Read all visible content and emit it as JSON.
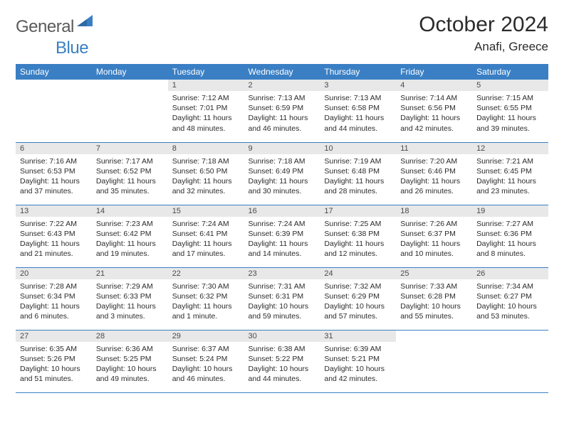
{
  "brand": {
    "part1": "General",
    "part2": "Blue"
  },
  "title": "October 2024",
  "location": "Anafi, Greece",
  "colors": {
    "header_bg": "#3a7fc4",
    "header_text": "#ffffff",
    "daynum_bg": "#e8e8e8",
    "row_border": "#3a7fc4",
    "body_text": "#2b2b2b",
    "logo_gray": "#5a5a5a",
    "logo_blue": "#3a7fc4"
  },
  "weekdays": [
    "Sunday",
    "Monday",
    "Tuesday",
    "Wednesday",
    "Thursday",
    "Friday",
    "Saturday"
  ],
  "weeks": [
    [
      {
        "n": "",
        "sr": "",
        "ss": "",
        "dl": ""
      },
      {
        "n": "",
        "sr": "",
        "ss": "",
        "dl": ""
      },
      {
        "n": "1",
        "sr": "Sunrise: 7:12 AM",
        "ss": "Sunset: 7:01 PM",
        "dl": "Daylight: 11 hours and 48 minutes."
      },
      {
        "n": "2",
        "sr": "Sunrise: 7:13 AM",
        "ss": "Sunset: 6:59 PM",
        "dl": "Daylight: 11 hours and 46 minutes."
      },
      {
        "n": "3",
        "sr": "Sunrise: 7:13 AM",
        "ss": "Sunset: 6:58 PM",
        "dl": "Daylight: 11 hours and 44 minutes."
      },
      {
        "n": "4",
        "sr": "Sunrise: 7:14 AM",
        "ss": "Sunset: 6:56 PM",
        "dl": "Daylight: 11 hours and 42 minutes."
      },
      {
        "n": "5",
        "sr": "Sunrise: 7:15 AM",
        "ss": "Sunset: 6:55 PM",
        "dl": "Daylight: 11 hours and 39 minutes."
      }
    ],
    [
      {
        "n": "6",
        "sr": "Sunrise: 7:16 AM",
        "ss": "Sunset: 6:53 PM",
        "dl": "Daylight: 11 hours and 37 minutes."
      },
      {
        "n": "7",
        "sr": "Sunrise: 7:17 AM",
        "ss": "Sunset: 6:52 PM",
        "dl": "Daylight: 11 hours and 35 minutes."
      },
      {
        "n": "8",
        "sr": "Sunrise: 7:18 AM",
        "ss": "Sunset: 6:50 PM",
        "dl": "Daylight: 11 hours and 32 minutes."
      },
      {
        "n": "9",
        "sr": "Sunrise: 7:18 AM",
        "ss": "Sunset: 6:49 PM",
        "dl": "Daylight: 11 hours and 30 minutes."
      },
      {
        "n": "10",
        "sr": "Sunrise: 7:19 AM",
        "ss": "Sunset: 6:48 PM",
        "dl": "Daylight: 11 hours and 28 minutes."
      },
      {
        "n": "11",
        "sr": "Sunrise: 7:20 AM",
        "ss": "Sunset: 6:46 PM",
        "dl": "Daylight: 11 hours and 26 minutes."
      },
      {
        "n": "12",
        "sr": "Sunrise: 7:21 AM",
        "ss": "Sunset: 6:45 PM",
        "dl": "Daylight: 11 hours and 23 minutes."
      }
    ],
    [
      {
        "n": "13",
        "sr": "Sunrise: 7:22 AM",
        "ss": "Sunset: 6:43 PM",
        "dl": "Daylight: 11 hours and 21 minutes."
      },
      {
        "n": "14",
        "sr": "Sunrise: 7:23 AM",
        "ss": "Sunset: 6:42 PM",
        "dl": "Daylight: 11 hours and 19 minutes."
      },
      {
        "n": "15",
        "sr": "Sunrise: 7:24 AM",
        "ss": "Sunset: 6:41 PM",
        "dl": "Daylight: 11 hours and 17 minutes."
      },
      {
        "n": "16",
        "sr": "Sunrise: 7:24 AM",
        "ss": "Sunset: 6:39 PM",
        "dl": "Daylight: 11 hours and 14 minutes."
      },
      {
        "n": "17",
        "sr": "Sunrise: 7:25 AM",
        "ss": "Sunset: 6:38 PM",
        "dl": "Daylight: 11 hours and 12 minutes."
      },
      {
        "n": "18",
        "sr": "Sunrise: 7:26 AM",
        "ss": "Sunset: 6:37 PM",
        "dl": "Daylight: 11 hours and 10 minutes."
      },
      {
        "n": "19",
        "sr": "Sunrise: 7:27 AM",
        "ss": "Sunset: 6:36 PM",
        "dl": "Daylight: 11 hours and 8 minutes."
      }
    ],
    [
      {
        "n": "20",
        "sr": "Sunrise: 7:28 AM",
        "ss": "Sunset: 6:34 PM",
        "dl": "Daylight: 11 hours and 6 minutes."
      },
      {
        "n": "21",
        "sr": "Sunrise: 7:29 AM",
        "ss": "Sunset: 6:33 PM",
        "dl": "Daylight: 11 hours and 3 minutes."
      },
      {
        "n": "22",
        "sr": "Sunrise: 7:30 AM",
        "ss": "Sunset: 6:32 PM",
        "dl": "Daylight: 11 hours and 1 minute."
      },
      {
        "n": "23",
        "sr": "Sunrise: 7:31 AM",
        "ss": "Sunset: 6:31 PM",
        "dl": "Daylight: 10 hours and 59 minutes."
      },
      {
        "n": "24",
        "sr": "Sunrise: 7:32 AM",
        "ss": "Sunset: 6:29 PM",
        "dl": "Daylight: 10 hours and 57 minutes."
      },
      {
        "n": "25",
        "sr": "Sunrise: 7:33 AM",
        "ss": "Sunset: 6:28 PM",
        "dl": "Daylight: 10 hours and 55 minutes."
      },
      {
        "n": "26",
        "sr": "Sunrise: 7:34 AM",
        "ss": "Sunset: 6:27 PM",
        "dl": "Daylight: 10 hours and 53 minutes."
      }
    ],
    [
      {
        "n": "27",
        "sr": "Sunrise: 6:35 AM",
        "ss": "Sunset: 5:26 PM",
        "dl": "Daylight: 10 hours and 51 minutes."
      },
      {
        "n": "28",
        "sr": "Sunrise: 6:36 AM",
        "ss": "Sunset: 5:25 PM",
        "dl": "Daylight: 10 hours and 49 minutes."
      },
      {
        "n": "29",
        "sr": "Sunrise: 6:37 AM",
        "ss": "Sunset: 5:24 PM",
        "dl": "Daylight: 10 hours and 46 minutes."
      },
      {
        "n": "30",
        "sr": "Sunrise: 6:38 AM",
        "ss": "Sunset: 5:22 PM",
        "dl": "Daylight: 10 hours and 44 minutes."
      },
      {
        "n": "31",
        "sr": "Sunrise: 6:39 AM",
        "ss": "Sunset: 5:21 PM",
        "dl": "Daylight: 10 hours and 42 minutes."
      },
      {
        "n": "",
        "sr": "",
        "ss": "",
        "dl": ""
      },
      {
        "n": "",
        "sr": "",
        "ss": "",
        "dl": ""
      }
    ]
  ]
}
